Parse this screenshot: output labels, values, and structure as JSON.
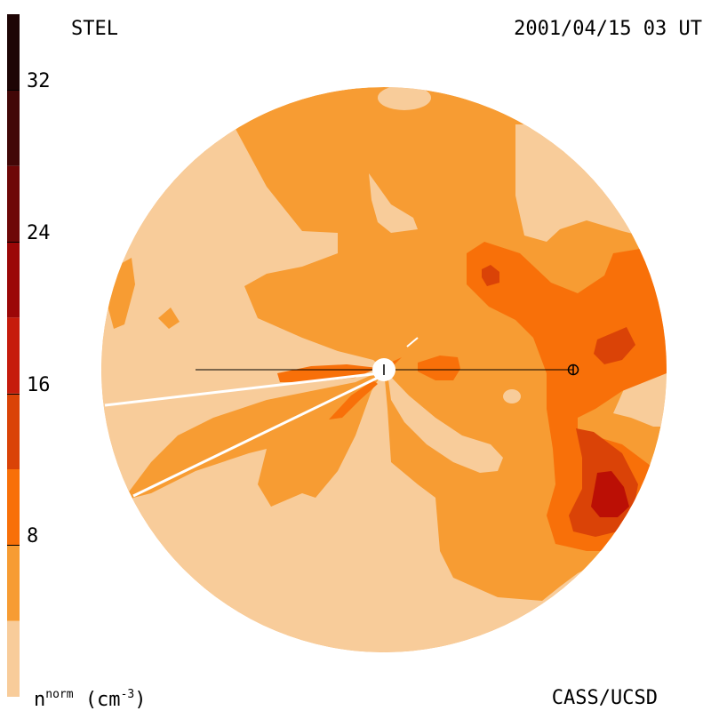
{
  "header": {
    "observatory": "STEL",
    "timestamp": "2001/04/15 03 UT"
  },
  "footer": {
    "credit": "CASS/UCSD",
    "unit_base": "n",
    "unit_sup": "norm",
    "unit_rest": "(cm",
    "unit_exp": "-3",
    "unit_close": ")"
  },
  "colorbar": {
    "min": 0,
    "max": 36,
    "ticks": [
      {
        "value": 32,
        "label": "32"
      },
      {
        "value": 24,
        "label": "24"
      },
      {
        "value": 16,
        "label": "16"
      },
      {
        "value": 8,
        "label": "8"
      }
    ],
    "levels": [
      {
        "from": 0,
        "to": 4,
        "color": "#f8cc9a"
      },
      {
        "from": 4,
        "to": 8,
        "color": "#f79c33"
      },
      {
        "from": 8,
        "to": 12,
        "color": "#f87009"
      },
      {
        "from": 12,
        "to": 16,
        "color": "#da4307"
      },
      {
        "from": 16,
        "to": 20,
        "color": "#c61c0c"
      },
      {
        "from": 20,
        "to": 24,
        "color": "#9b0707"
      },
      {
        "from": 24,
        "to": 28,
        "color": "#6e0707"
      },
      {
        "from": 28,
        "to": 32,
        "color": "#420707"
      },
      {
        "from": 32,
        "to": 36,
        "color": "#1e0505"
      }
    ]
  },
  "map": {
    "colors": {
      "lightest": "#f8cc9a",
      "light": "#f79c33",
      "mid": "#f87009",
      "dark": "#da4307",
      "darker": "#bb0f05"
    }
  }
}
